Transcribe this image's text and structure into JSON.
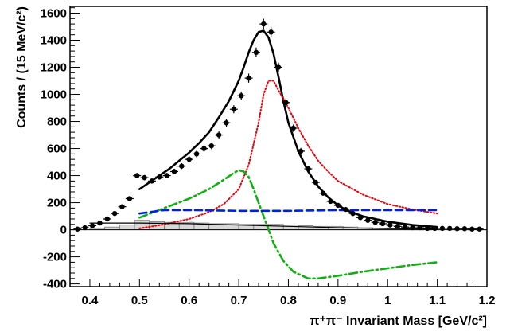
{
  "chart_data": {
    "type": "scatter",
    "xlabel": "π⁺π⁻ Invariant Mass [GeV/c²]",
    "ylabel": "Counts / (15 MeV/c²)",
    "xlim": [
      0.36,
      1.2
    ],
    "ylim": [
      -420,
      1650
    ],
    "x_ticks": [
      "0.4",
      "0.5",
      "0.6",
      "0.7",
      "0.8",
      "0.9",
      "1",
      "1.1",
      "1.2"
    ],
    "y_ticks": [
      "-400",
      "-200",
      "0",
      "200",
      "400",
      "600",
      "800",
      "1000",
      "1200",
      "1400",
      "1600"
    ],
    "grid": false,
    "legend": "none",
    "data_points": {
      "color": "#000000",
      "x": [
        0.375,
        0.39,
        0.405,
        0.42,
        0.435,
        0.45,
        0.465,
        0.48,
        0.495,
        0.51,
        0.525,
        0.54,
        0.555,
        0.57,
        0.585,
        0.6,
        0.615,
        0.63,
        0.645,
        0.66,
        0.675,
        0.69,
        0.705,
        0.72,
        0.735,
        0.75,
        0.765,
        0.78,
        0.795,
        0.81,
        0.825,
        0.84,
        0.855,
        0.87,
        0.885,
        0.9,
        0.915,
        0.93,
        0.945,
        0.96,
        0.975,
        0.99,
        1.005,
        1.02,
        1.035,
        1.05,
        1.065,
        1.08,
        1.095,
        1.11,
        1.125,
        1.14,
        1.155,
        1.17,
        1.185
      ],
      "y": [
        5,
        15,
        30,
        50,
        80,
        120,
        170,
        230,
        400,
        385,
        360,
        390,
        400,
        430,
        470,
        520,
        560,
        600,
        620,
        700,
        790,
        890,
        990,
        1120,
        1310,
        1520,
        1460,
        1200,
        940,
        750,
        580,
        450,
        350,
        270,
        210,
        180,
        150,
        120,
        90,
        70,
        55,
        45,
        35,
        25,
        20,
        15,
        15,
        10,
        10,
        10,
        10,
        8,
        8,
        5,
        5
      ]
    },
    "series": [
      {
        "style": "solid-thick",
        "color": "#000000",
        "x": [
          0.5,
          0.52,
          0.54,
          0.56,
          0.58,
          0.6,
          0.62,
          0.64,
          0.66,
          0.68,
          0.7,
          0.71,
          0.72,
          0.73,
          0.74,
          0.75,
          0.76,
          0.77,
          0.78,
          0.79,
          0.8,
          0.82,
          0.84,
          0.86,
          0.88,
          0.9,
          0.92,
          0.95,
          1.0,
          1.05,
          1.1
        ],
        "y": [
          300,
          350,
          400,
          450,
          510,
          570,
          640,
          720,
          830,
          950,
          1100,
          1200,
          1310,
          1400,
          1460,
          1470,
          1420,
          1300,
          1130,
          950,
          790,
          580,
          430,
          320,
          240,
          180,
          140,
          100,
          60,
          35,
          20
        ]
      },
      {
        "style": "dotted",
        "color": "#e8000c",
        "x": [
          0.5,
          0.55,
          0.6,
          0.64,
          0.67,
          0.7,
          0.72,
          0.74,
          0.75,
          0.76,
          0.77,
          0.78,
          0.8,
          0.82,
          0.84,
          0.86,
          0.88,
          0.9,
          0.95,
          1.0,
          1.05,
          1.1
        ],
        "y": [
          10,
          40,
          80,
          130,
          190,
          300,
          480,
          790,
          1000,
          1100,
          1100,
          1030,
          900,
          750,
          620,
          510,
          430,
          360,
          260,
          190,
          150,
          120
        ]
      },
      {
        "style": "dash-dot",
        "color": "#10b010",
        "x": [
          0.5,
          0.55,
          0.6,
          0.64,
          0.67,
          0.69,
          0.7,
          0.71,
          0.72,
          0.73,
          0.75,
          0.77,
          0.79,
          0.81,
          0.84,
          0.86,
          0.88,
          0.9,
          0.95,
          1.0,
          1.05,
          1.1
        ],
        "y": [
          90,
          160,
          230,
          300,
          370,
          420,
          440,
          430,
          390,
          300,
          100,
          -100,
          -230,
          -310,
          -360,
          -360,
          -350,
          -340,
          -310,
          -285,
          -260,
          -240
        ]
      },
      {
        "style": "dashed",
        "color": "#0020e0",
        "x": [
          0.5,
          0.55,
          0.6,
          0.7,
          0.8,
          0.9,
          1.0,
          1.1
        ],
        "y": [
          120,
          145,
          145,
          140,
          140,
          145,
          145,
          145
        ]
      },
      {
        "style": "solid-thin",
        "color": "#000000",
        "x": [
          0.4,
          0.5,
          0.6,
          0.7,
          0.8,
          0.9,
          1.0,
          1.1
        ],
        "y": [
          50,
          50,
          45,
          35,
          25,
          15,
          8,
          5
        ]
      }
    ],
    "histogram": {
      "color": "#d8d8d8",
      "edge_color": "#777777",
      "bin_edges": [
        0.4,
        0.43,
        0.46,
        0.49,
        0.52,
        0.55,
        0.58,
        0.61,
        0.64,
        0.67,
        0.7,
        0.73,
        0.76,
        0.79,
        0.82,
        0.85,
        0.88,
        0.91,
        0.94,
        0.97,
        1.0,
        1.03,
        1.06,
        1.09,
        1.1
      ],
      "values": [
        10,
        20,
        35,
        70,
        60,
        55,
        55,
        50,
        45,
        45,
        40,
        40,
        40,
        35,
        30,
        25,
        25,
        20,
        15,
        12,
        10,
        8,
        6,
        5
      ]
    }
  }
}
